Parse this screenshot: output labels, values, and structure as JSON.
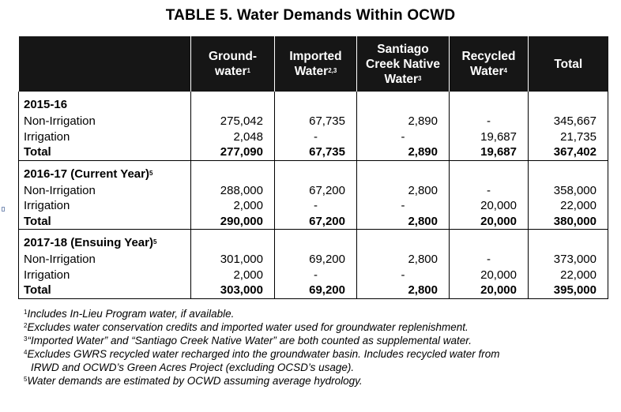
{
  "title": "TABLE 5.  Water Demands Within OCWD",
  "columns": [
    {
      "line1": "Ground-",
      "line2": "water",
      "sup": "1"
    },
    {
      "line1": "Imported",
      "line2": "Water",
      "sup": "2,3"
    },
    {
      "line1": "Santiago",
      "line2": "Creek Native",
      "line3": "Water",
      "sup": "3"
    },
    {
      "line1": "Recycled",
      "line2": "Water",
      "sup": "4"
    },
    {
      "line1": "Total",
      "line2": "",
      "sup": ""
    }
  ],
  "years": [
    {
      "label": "2015-16",
      "sup": "",
      "rows": [
        {
          "label": "Non-Irrigation",
          "values": [
            "275,042",
            "67,735",
            "2,890",
            "-",
            "345,667"
          ]
        },
        {
          "label": "Irrigation",
          "values": [
            "2,048",
            "-",
            "-",
            "19,687",
            "21,735"
          ]
        },
        {
          "label": "Total",
          "values": [
            "277,090",
            "67,735",
            "2,890",
            "19,687",
            "367,402"
          ]
        }
      ]
    },
    {
      "label": "2016-17 (Current Year)",
      "sup": "5",
      "rows": [
        {
          "label": "Non-Irrigation",
          "values": [
            "288,000",
            "67,200",
            "2,800",
            "-",
            "358,000"
          ]
        },
        {
          "label": "Irrigation",
          "values": [
            "2,000",
            "-",
            "-",
            "20,000",
            "22,000"
          ]
        },
        {
          "label": "Total",
          "values": [
            "290,000",
            "67,200",
            "2,800",
            "20,000",
            "380,000"
          ]
        }
      ]
    },
    {
      "label": "2017-18 (Ensuing Year)",
      "sup": "5",
      "rows": [
        {
          "label": "Non-Irrigation",
          "values": [
            "301,000",
            "69,200",
            "2,800",
            "-",
            "373,000"
          ]
        },
        {
          "label": "Irrigation",
          "values": [
            "2,000",
            "-",
            "-",
            "20,000",
            "22,000"
          ]
        },
        {
          "label": "Total",
          "values": [
            "303,000",
            "69,200",
            "2,800",
            "20,000",
            "395,000"
          ]
        }
      ]
    }
  ],
  "footnotes": [
    {
      "n": "1",
      "text": "Includes In-Lieu Program water, if available."
    },
    {
      "n": "2",
      "text": "Excludes water conservation credits and imported water used for groundwater replenishment."
    },
    {
      "n": "3",
      "text": "“Imported Water” and “Santiago Creek Native Water” are both counted as supplemental water."
    },
    {
      "n": "4",
      "text": "Excludes GWRS recycled water recharged into the groundwater basin. Includes recycled water from",
      "cont": "IRWD and OCWD’s Green Acres Project (excluding OCSD’s usage)."
    },
    {
      "n": "5",
      "text": "Water demands are estimated by OCWD assuming average hydrology."
    }
  ]
}
